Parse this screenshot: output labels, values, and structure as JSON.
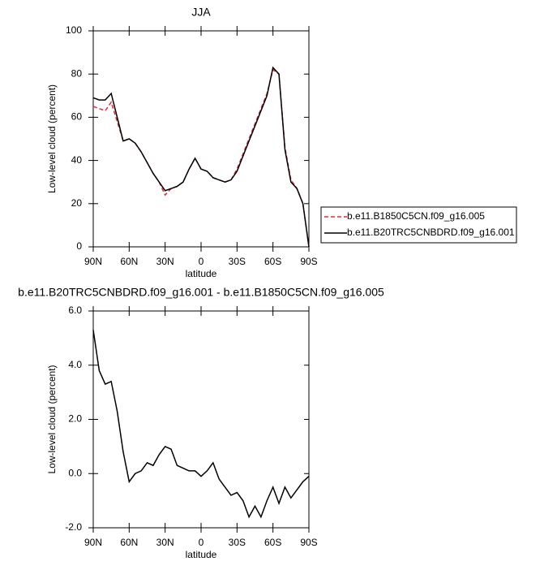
{
  "chart_data": [
    {
      "type": "line",
      "title": "JJA",
      "xlabel": "latitude",
      "ylabel": "Low-level cloud (percent)",
      "x": [
        90,
        85,
        80,
        75,
        70,
        65,
        60,
        55,
        50,
        45,
        40,
        35,
        30,
        25,
        20,
        15,
        10,
        5,
        0,
        -5,
        -10,
        -15,
        -20,
        -25,
        -30,
        -35,
        -40,
        -45,
        -50,
        -55,
        -60,
        -65,
        -70,
        -75,
        -80,
        -85,
        -90
      ],
      "xlim": [
        90,
        -90
      ],
      "xticks": [
        {
          "value": 90,
          "label": "90N"
        },
        {
          "value": 60,
          "label": "60N"
        },
        {
          "value": 30,
          "label": "30N"
        },
        {
          "value": 0,
          "label": "0"
        },
        {
          "value": -30,
          "label": "30S"
        },
        {
          "value": -60,
          "label": "60S"
        },
        {
          "value": -90,
          "label": "90S"
        }
      ],
      "ylim": [
        0,
        100
      ],
      "yticks": [
        0,
        20,
        40,
        60,
        80,
        100
      ],
      "legend": "right",
      "series": [
        {
          "name": "b.e11.B1850C5CN.f09_g16.005",
          "color": "#e8283c",
          "line_style": "dashed",
          "values": [
            65,
            64,
            63,
            67,
            58,
            49,
            50,
            48,
            44,
            39,
            34,
            30,
            24,
            27,
            28,
            30,
            36,
            41,
            36,
            35,
            32,
            31,
            30,
            31,
            36,
            43,
            50,
            57,
            64,
            71,
            82,
            80,
            46,
            31,
            27,
            20,
            0
          ]
        },
        {
          "name": "b.e11.B20TRC5CNBDRD.f09_g16.001",
          "color": "#000000",
          "line_style": "solid",
          "values": [
            69,
            68,
            68,
            71,
            60,
            49,
            50,
            48,
            44,
            39,
            34,
            30,
            26,
            27,
            28,
            30,
            36,
            41,
            36,
            35,
            32,
            31,
            30,
            31,
            35,
            42,
            49,
            56,
            63,
            70,
            83,
            80,
            45,
            30,
            27,
            20,
            0
          ]
        }
      ]
    },
    {
      "type": "line",
      "title": "b.e11.B20TRC5CNBDRD.f09_g16.001 - b.e11.B1850C5CN.f09_g16.005",
      "xlabel": "latitude",
      "ylabel": "Low-level cloud (percent)",
      "x": [
        90,
        85,
        80,
        75,
        70,
        65,
        60,
        55,
        50,
        45,
        40,
        35,
        30,
        25,
        20,
        15,
        10,
        5,
        0,
        -5,
        -10,
        -15,
        -20,
        -25,
        -30,
        -35,
        -40,
        -45,
        -50,
        -55,
        -60,
        -65,
        -70,
        -75,
        -80,
        -85,
        -90
      ],
      "xlim": [
        90,
        -90
      ],
      "xticks": [
        {
          "value": 90,
          "label": "90N"
        },
        {
          "value": 60,
          "label": "60N"
        },
        {
          "value": 30,
          "label": "30N"
        },
        {
          "value": 0,
          "label": "0"
        },
        {
          "value": -30,
          "label": "30S"
        },
        {
          "value": -60,
          "label": "60S"
        },
        {
          "value": -90,
          "label": "90S"
        }
      ],
      "ylim": [
        -2,
        6
      ],
      "yticks": [
        {
          "value": -2,
          "label": "-2.0"
        },
        {
          "value": 0,
          "label": "0.0"
        },
        {
          "value": 2,
          "label": "2.0"
        },
        {
          "value": 4,
          "label": "4.0"
        },
        {
          "value": 6,
          "label": "6.0"
        }
      ],
      "series": [
        {
          "color": "#000000",
          "line_style": "solid",
          "values": [
            5.3,
            3.8,
            3.3,
            3.4,
            2.3,
            0.8,
            -0.3,
            0.0,
            0.1,
            0.4,
            0.3,
            0.7,
            1.0,
            0.9,
            0.3,
            0.2,
            0.1,
            0.1,
            -0.1,
            0.1,
            0.4,
            -0.2,
            -0.5,
            -0.8,
            -0.7,
            -1.0,
            -1.6,
            -1.2,
            -1.6,
            -1.0,
            -0.5,
            -1.1,
            -0.5,
            -0.9,
            -0.6,
            -0.3,
            -0.1
          ]
        }
      ]
    }
  ]
}
